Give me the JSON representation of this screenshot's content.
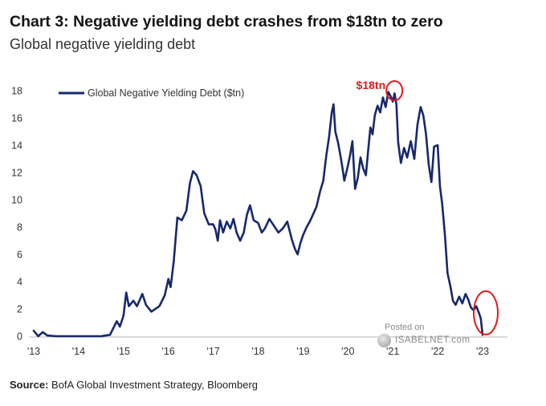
{
  "chart_data": {
    "type": "line",
    "title": "Chart 3: Negative yielding debt crashes from $18tn to zero",
    "subtitle": "Global negative yielding debt",
    "series": [
      {
        "name": "Global Negative Yielding Debt ($tn)",
        "color": "#17286b",
        "points": [
          [
            2013.0,
            0.4
          ],
          [
            2013.05,
            0.2
          ],
          [
            2013.1,
            0.0
          ],
          [
            2013.2,
            0.3
          ],
          [
            2013.3,
            0.05
          ],
          [
            2013.5,
            0.0
          ],
          [
            2014.0,
            0.0
          ],
          [
            2014.5,
            0.0
          ],
          [
            2014.7,
            0.1
          ],
          [
            2014.85,
            1.1
          ],
          [
            2014.92,
            0.7
          ],
          [
            2015.0,
            1.5
          ],
          [
            2015.06,
            3.2
          ],
          [
            2015.12,
            2.2
          ],
          [
            2015.22,
            2.6
          ],
          [
            2015.3,
            2.2
          ],
          [
            2015.42,
            3.1
          ],
          [
            2015.5,
            2.3
          ],
          [
            2015.62,
            1.8
          ],
          [
            2015.8,
            2.2
          ],
          [
            2015.92,
            3.0
          ],
          [
            2016.0,
            4.2
          ],
          [
            2016.05,
            3.6
          ],
          [
            2016.12,
            5.5
          ],
          [
            2016.2,
            8.7
          ],
          [
            2016.3,
            8.5
          ],
          [
            2016.4,
            9.2
          ],
          [
            2016.48,
            11.2
          ],
          [
            2016.55,
            12.1
          ],
          [
            2016.63,
            11.8
          ],
          [
            2016.72,
            11.0
          ],
          [
            2016.8,
            9.0
          ],
          [
            2016.9,
            8.2
          ],
          [
            2017.0,
            8.2
          ],
          [
            2017.05,
            7.8
          ],
          [
            2017.1,
            7.0
          ],
          [
            2017.15,
            8.5
          ],
          [
            2017.22,
            7.6
          ],
          [
            2017.3,
            8.4
          ],
          [
            2017.38,
            7.9
          ],
          [
            2017.45,
            8.6
          ],
          [
            2017.52,
            7.6
          ],
          [
            2017.6,
            7.0
          ],
          [
            2017.68,
            7.6
          ],
          [
            2017.75,
            8.9
          ],
          [
            2017.82,
            9.6
          ],
          [
            2017.9,
            8.5
          ],
          [
            2018.0,
            8.3
          ],
          [
            2018.08,
            7.6
          ],
          [
            2018.15,
            7.9
          ],
          [
            2018.25,
            8.6
          ],
          [
            2018.35,
            8.1
          ],
          [
            2018.45,
            7.6
          ],
          [
            2018.55,
            7.9
          ],
          [
            2018.65,
            8.4
          ],
          [
            2018.75,
            7.1
          ],
          [
            2018.82,
            6.4
          ],
          [
            2018.88,
            6.0
          ],
          [
            2018.94,
            6.8
          ],
          [
            2019.0,
            7.4
          ],
          [
            2019.08,
            8.0
          ],
          [
            2019.15,
            8.4
          ],
          [
            2019.22,
            8.9
          ],
          [
            2019.3,
            9.5
          ],
          [
            2019.38,
            10.6
          ],
          [
            2019.45,
            11.4
          ],
          [
            2019.52,
            13.3
          ],
          [
            2019.58,
            14.6
          ],
          [
            2019.64,
            16.4
          ],
          [
            2019.68,
            17.0
          ],
          [
            2019.72,
            15.0
          ],
          [
            2019.78,
            14.2
          ],
          [
            2019.84,
            13.1
          ],
          [
            2019.88,
            12.3
          ],
          [
            2019.92,
            11.4
          ],
          [
            2020.0,
            12.5
          ],
          [
            2020.05,
            13.3
          ],
          [
            2020.1,
            14.3
          ],
          [
            2020.16,
            10.8
          ],
          [
            2020.22,
            11.6
          ],
          [
            2020.28,
            13.1
          ],
          [
            2020.34,
            12.3
          ],
          [
            2020.4,
            11.8
          ],
          [
            2020.45,
            13.6
          ],
          [
            2020.5,
            15.3
          ],
          [
            2020.55,
            14.8
          ],
          [
            2020.6,
            16.2
          ],
          [
            2020.66,
            16.9
          ],
          [
            2020.72,
            16.4
          ],
          [
            2020.78,
            17.5
          ],
          [
            2020.84,
            16.8
          ],
          [
            2020.9,
            17.9
          ],
          [
            2020.95,
            17.6
          ],
          [
            2021.0,
            17.2
          ],
          [
            2021.04,
            17.8
          ],
          [
            2021.08,
            17.0
          ],
          [
            2021.12,
            14.2
          ],
          [
            2021.18,
            12.7
          ],
          [
            2021.25,
            13.8
          ],
          [
            2021.32,
            13.1
          ],
          [
            2021.4,
            14.3
          ],
          [
            2021.48,
            13.0
          ],
          [
            2021.55,
            15.5
          ],
          [
            2021.62,
            16.8
          ],
          [
            2021.68,
            16.2
          ],
          [
            2021.74,
            14.8
          ],
          [
            2021.8,
            12.6
          ],
          [
            2021.86,
            11.3
          ],
          [
            2021.92,
            13.9
          ],
          [
            2022.0,
            14.0
          ],
          [
            2022.05,
            11.0
          ],
          [
            2022.1,
            9.7
          ],
          [
            2022.16,
            7.5
          ],
          [
            2022.22,
            4.6
          ],
          [
            2022.28,
            3.7
          ],
          [
            2022.34,
            2.6
          ],
          [
            2022.4,
            2.3
          ],
          [
            2022.48,
            2.9
          ],
          [
            2022.55,
            2.4
          ],
          [
            2022.62,
            3.1
          ],
          [
            2022.68,
            2.7
          ],
          [
            2022.74,
            2.1
          ],
          [
            2022.8,
            1.9
          ],
          [
            2022.86,
            2.2
          ],
          [
            2022.92,
            1.7
          ],
          [
            2022.96,
            1.3
          ],
          [
            2023.0,
            0.1
          ]
        ]
      }
    ],
    "x_ticks": [
      "'13",
      "'14",
      "'15",
      "'16",
      "'17",
      "'18",
      "'19",
      "'20",
      "'21",
      "'22",
      "'23"
    ],
    "x_tick_values": [
      2013,
      2014,
      2015,
      2016,
      2017,
      2018,
      2019,
      2020,
      2021,
      2022,
      2023
    ],
    "y_ticks": [
      "0",
      "2",
      "4",
      "6",
      "8",
      "10",
      "12",
      "14",
      "16",
      "18"
    ],
    "y_tick_values": [
      0,
      2,
      4,
      6,
      8,
      10,
      12,
      14,
      16,
      18
    ],
    "xlim": [
      2013,
      2023.5
    ],
    "ylim": [
      0,
      18.8
    ],
    "grid": false,
    "legend_position": "top-left",
    "annotations": [
      {
        "text": "$18tn",
        "x": 2020.6,
        "y": 18.3,
        "color": "#e31919"
      }
    ],
    "highlight_circles": [
      {
        "label": "peak",
        "x": 2021.0,
        "y": 18.0,
        "color": "#e31919"
      },
      {
        "label": "latest",
        "x": 2023.0,
        "y": 1.3,
        "color": "#e31919"
      }
    ],
    "source_label": "Source:",
    "source_text": "BofA Global Investment Strategy, Bloomberg"
  },
  "watermark": {
    "line1": "Posted on",
    "line2": "ISABELNET.com"
  }
}
